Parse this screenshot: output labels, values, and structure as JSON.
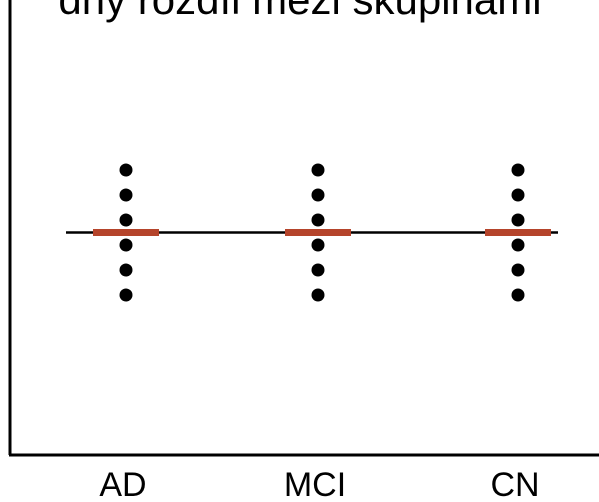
{
  "chart_data": {
    "type": "scatter",
    "title": "dný rozdíl mezi skupinami",
    "xlabel": "",
    "ylabel": "",
    "categories": [
      "AD",
      "MCI",
      "CN"
    ],
    "ylim": [
      0,
      10
    ],
    "series": [
      {
        "category": "AD",
        "values": [
          1,
          2,
          3,
          4,
          5,
          6
        ]
      },
      {
        "category": "MCI",
        "values": [
          1,
          2,
          3,
          4,
          5,
          6
        ]
      },
      {
        "category": "CN",
        "values": [
          1,
          2,
          3,
          4,
          5,
          6
        ]
      }
    ],
    "group_means": [
      3.5,
      3.5,
      3.5
    ],
    "reference_line": 3.5,
    "grid": false,
    "colors": {
      "points": "#000000",
      "mean_bar": "#b5442b",
      "reference_line": "#000000",
      "axes": "#000000"
    }
  }
}
